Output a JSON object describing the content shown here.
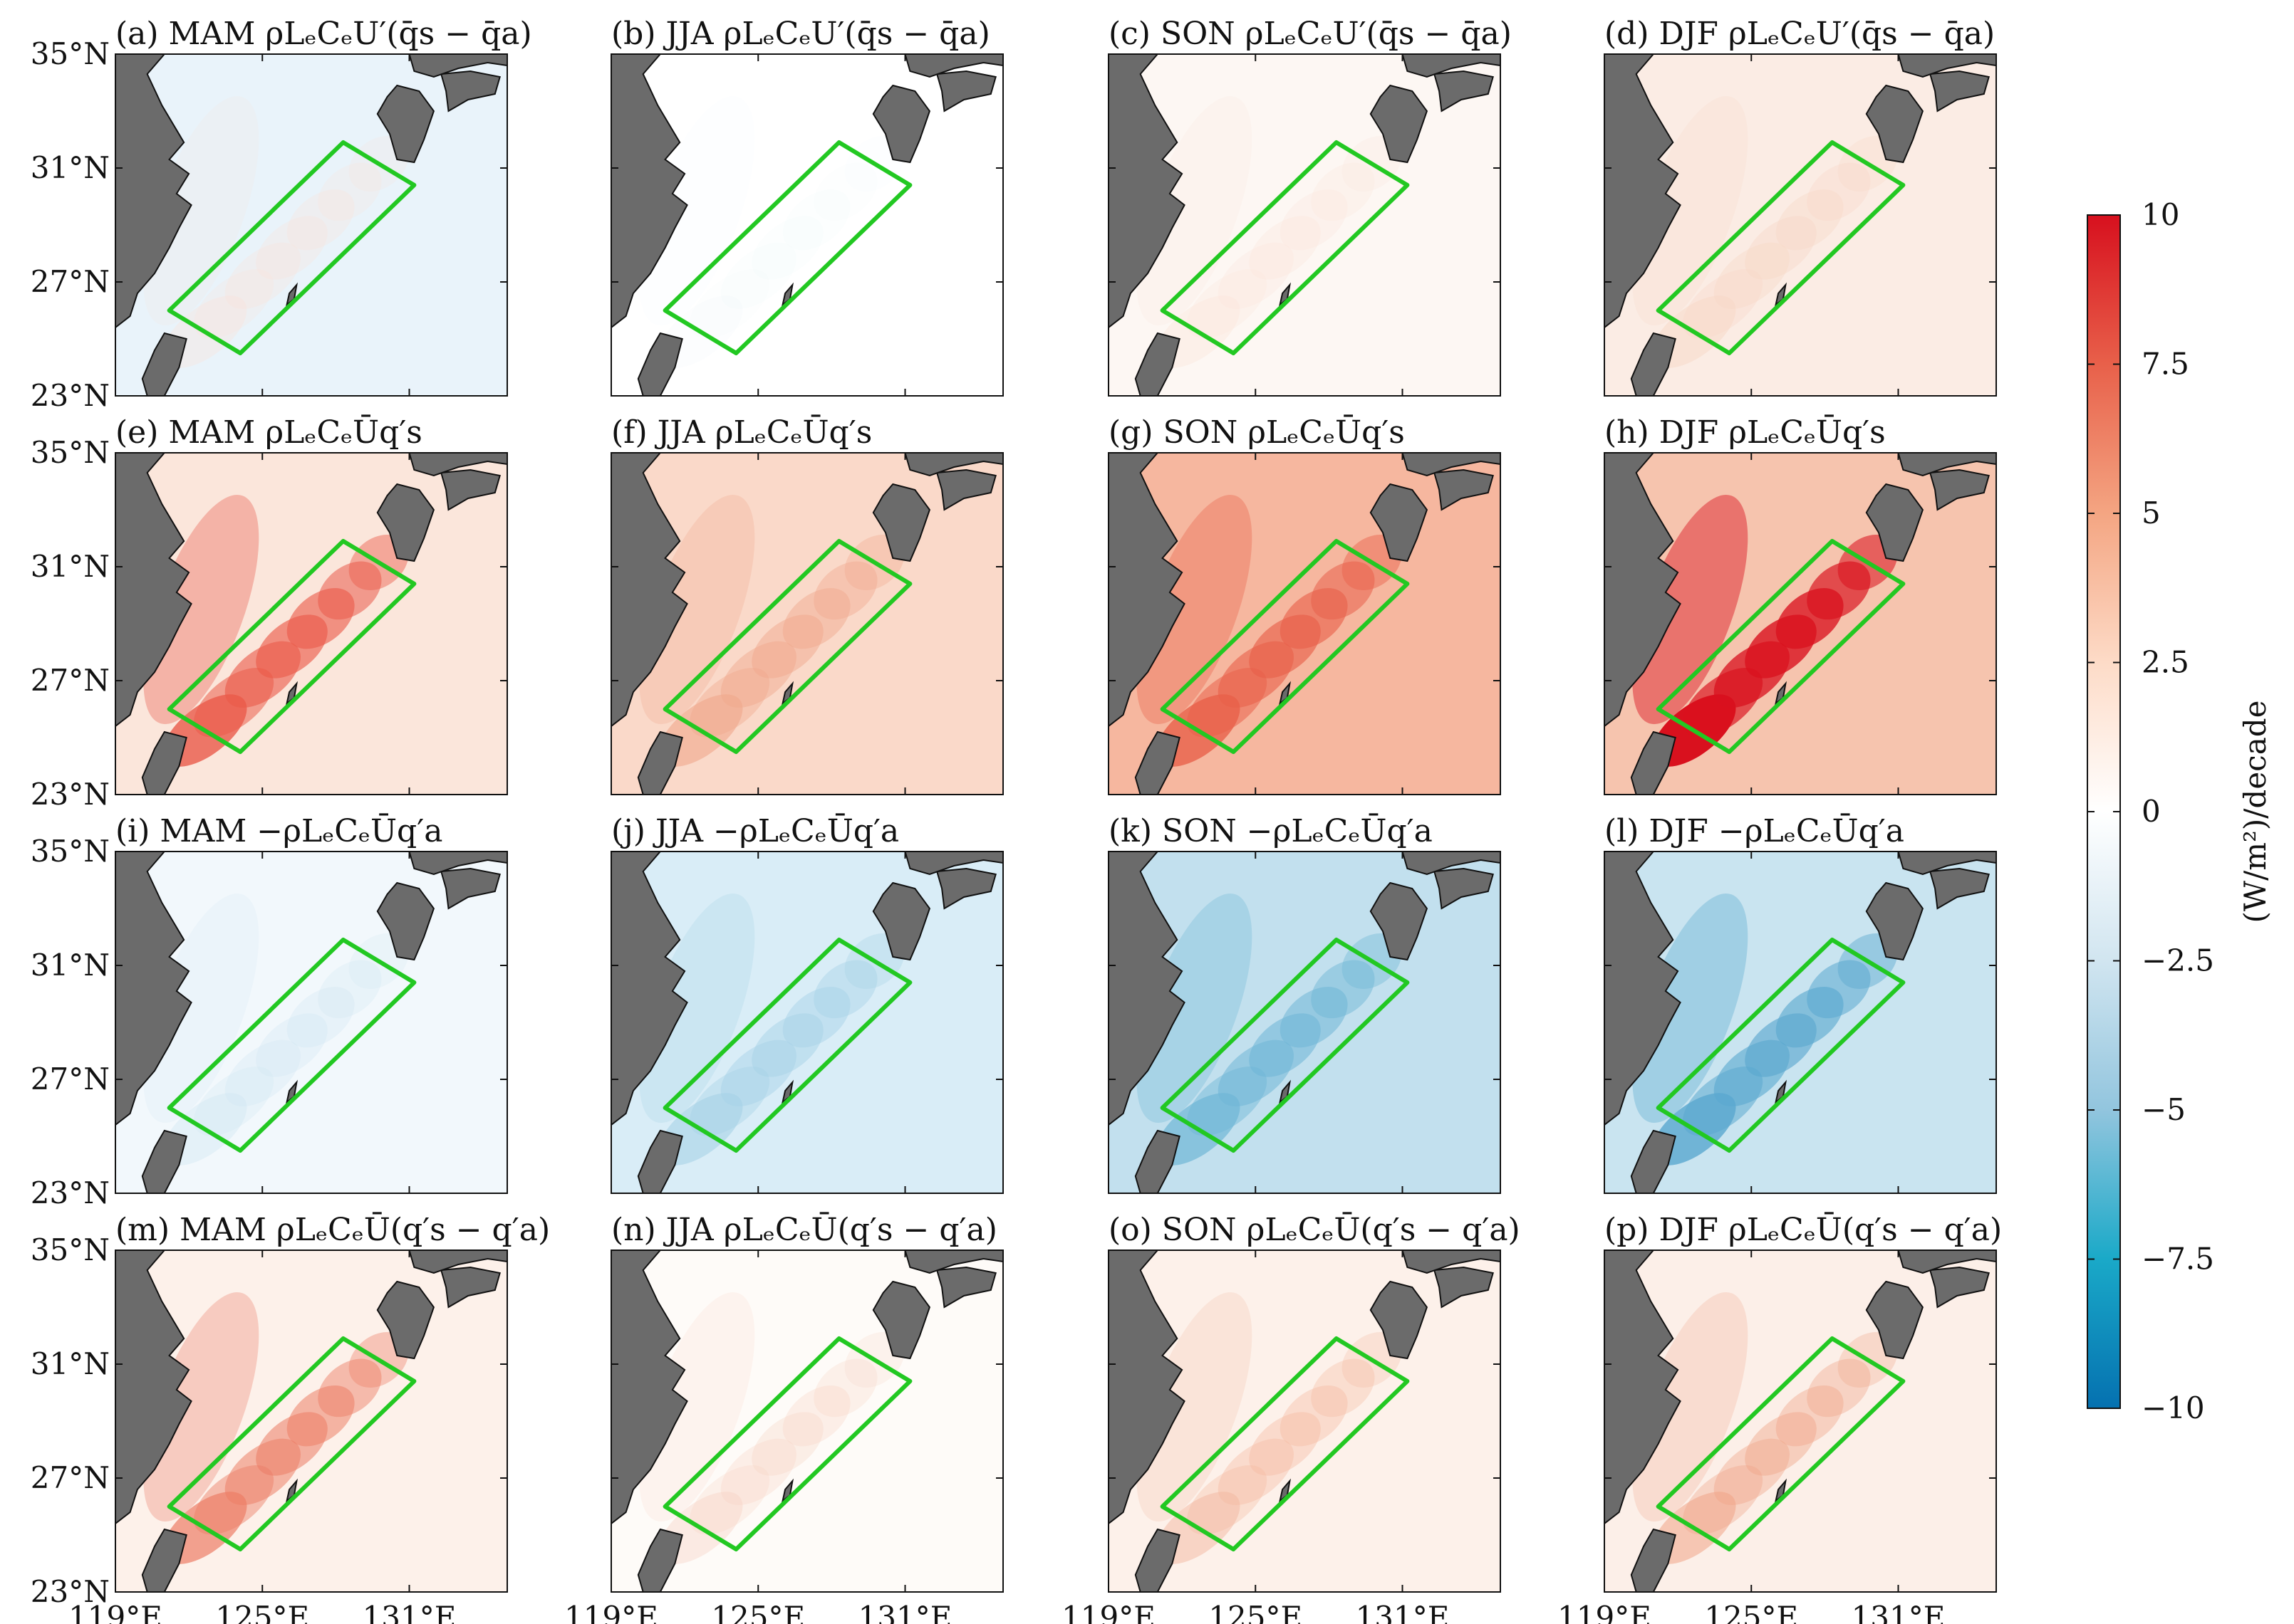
{
  "chart_data": {
    "type": "heatmap",
    "layout": "4x4 map panels",
    "map": {
      "lon_range": [
        119,
        135
      ],
      "lat_range": [
        23,
        35
      ],
      "xticks": [
        119,
        125,
        131
      ],
      "xtick_labels": [
        "119°E",
        "125°E",
        "131°E"
      ],
      "yticks": [
        35,
        31,
        27,
        23
      ],
      "ytick_labels": [
        "35°N",
        "31°N",
        "27°N",
        "23°N"
      ],
      "land_color": "#6b6b6b",
      "box_color": "#22c822",
      "box_corners_lonlat": [
        [
          121.2,
          26.0
        ],
        [
          124.1,
          24.5
        ],
        [
          131.2,
          30.4
        ],
        [
          128.3,
          31.9
        ]
      ]
    },
    "panels": [
      {
        "label": "(a) MAM ρLₑCₑU′(q̄s − q̄a)",
        "season": "MAM",
        "term": "U_prime_dq",
        "base_color": "#e9f3fa",
        "anomaly_color": "#fbe3d8",
        "anomaly_level": 0.35
      },
      {
        "label": "(b) JJA ρLₑCₑU′(q̄s − q̄a)",
        "season": "JJA",
        "term": "U_prime_dq",
        "base_color": "#ffffff",
        "anomaly_color": "#eef6fb",
        "anomaly_level": 0.2
      },
      {
        "label": "(c) SON ρLₑCₑU′(q̄s − q̄a)",
        "season": "SON",
        "term": "U_prime_dq",
        "base_color": "#fdf7f3",
        "anomaly_color": "#fbe5da",
        "anomaly_level": 0.4
      },
      {
        "label": "(d) DJF ρLₑCₑU′(q̄s − q̄a)",
        "season": "DJF",
        "term": "U_prime_dq",
        "base_color": "#fbece4",
        "anomaly_color": "#f8d7c6",
        "anomaly_level": 0.5
      },
      {
        "label": "(e) MAM ρLₑCₑŪq′s",
        "season": "MAM",
        "term": "Ubar_qs_prime",
        "base_color": "#fbe6db",
        "anomaly_color": "#ea5a4a",
        "anomaly_level": 0.8
      },
      {
        "label": "(f) JJA ρLₑCₑŪq′s",
        "season": "JJA",
        "term": "Ubar_qs_prime",
        "base_color": "#fad9c9",
        "anomaly_color": "#f0a78c",
        "anomaly_level": 0.6
      },
      {
        "label": "(g) SON ρLₑCₑŪq′s",
        "season": "SON",
        "term": "Ubar_qs_prime",
        "base_color": "#f6b79f",
        "anomaly_color": "#e8604a",
        "anomaly_level": 0.8
      },
      {
        "label": "(h) DJF ρLₑCₑŪq′s",
        "season": "DJF",
        "term": "Ubar_qs_prime",
        "base_color": "#f6c4ae",
        "anomaly_color": "#d9111e",
        "anomaly_level": 1.0
      },
      {
        "label": "(i) MAM −ρLₑCₑŪq′a",
        "season": "MAM",
        "term": "Ubar_qa_prime",
        "base_color": "#f2f8fc",
        "anomaly_color": "#cfe6f2",
        "anomaly_level": 0.4
      },
      {
        "label": "(j) JJA −ρLₑCₑŪq′a",
        "season": "JJA",
        "term": "Ubar_qa_prime",
        "base_color": "#d9edf7",
        "anomaly_color": "#a6d2e6",
        "anomaly_level": 0.6
      },
      {
        "label": "(k) SON −ρLₑCₑŪq′a",
        "season": "SON",
        "term": "Ubar_qa_prime",
        "base_color": "#c2e0ee",
        "anomaly_color": "#6fb6d6",
        "anomaly_level": 0.7
      },
      {
        "label": "(l) DJF −ρLₑCₑŪq′a",
        "season": "DJF",
        "term": "Ubar_qa_prime",
        "base_color": "#c9e4f0",
        "anomaly_color": "#5aa8cf",
        "anomaly_level": 0.8
      },
      {
        "label": "(m) MAM ρLₑCₑŪ(q′s − q′a)",
        "season": "MAM",
        "term": "Ubar_dq_prime",
        "base_color": "#fdf1ea",
        "anomaly_color": "#ec7d66",
        "anomaly_level": 0.7
      },
      {
        "label": "(n) JJA ρLₑCₑŪ(q′s − q′a)",
        "season": "JJA",
        "term": "Ubar_dq_prime",
        "base_color": "#fefbf8",
        "anomaly_color": "#f7d3c2",
        "anomaly_level": 0.4
      },
      {
        "label": "(o) SON ρLₑCₑŪ(q′s − q′a)",
        "season": "SON",
        "term": "Ubar_dq_prime",
        "base_color": "#fdf1ea",
        "anomaly_color": "#f4b89f",
        "anomaly_level": 0.5
      },
      {
        "label": "(p) DJF ρLₑCₑŪ(q′s − q′a)",
        "season": "DJF",
        "term": "Ubar_dq_prime",
        "base_color": "#fcefe8",
        "anomaly_color": "#f0a487",
        "anomaly_level": 0.55
      }
    ],
    "colorbar": {
      "range": [
        -10,
        10
      ],
      "ticks": [
        10,
        7.5,
        5,
        2.5,
        0,
        -2.5,
        -5,
        -7.5,
        -10
      ],
      "tick_labels": [
        "10",
        "7.5",
        "5",
        "2.5",
        "0",
        "−2.5",
        "−5",
        "−7.5",
        "−10"
      ],
      "label": "(W/m²)/decade",
      "colors": [
        "#0571b0",
        "#1aa9c8",
        "#92c5de",
        "#d1e5f0",
        "#ffffff",
        "#fddbc7",
        "#f4a582",
        "#e8604a",
        "#d7101e"
      ]
    }
  }
}
